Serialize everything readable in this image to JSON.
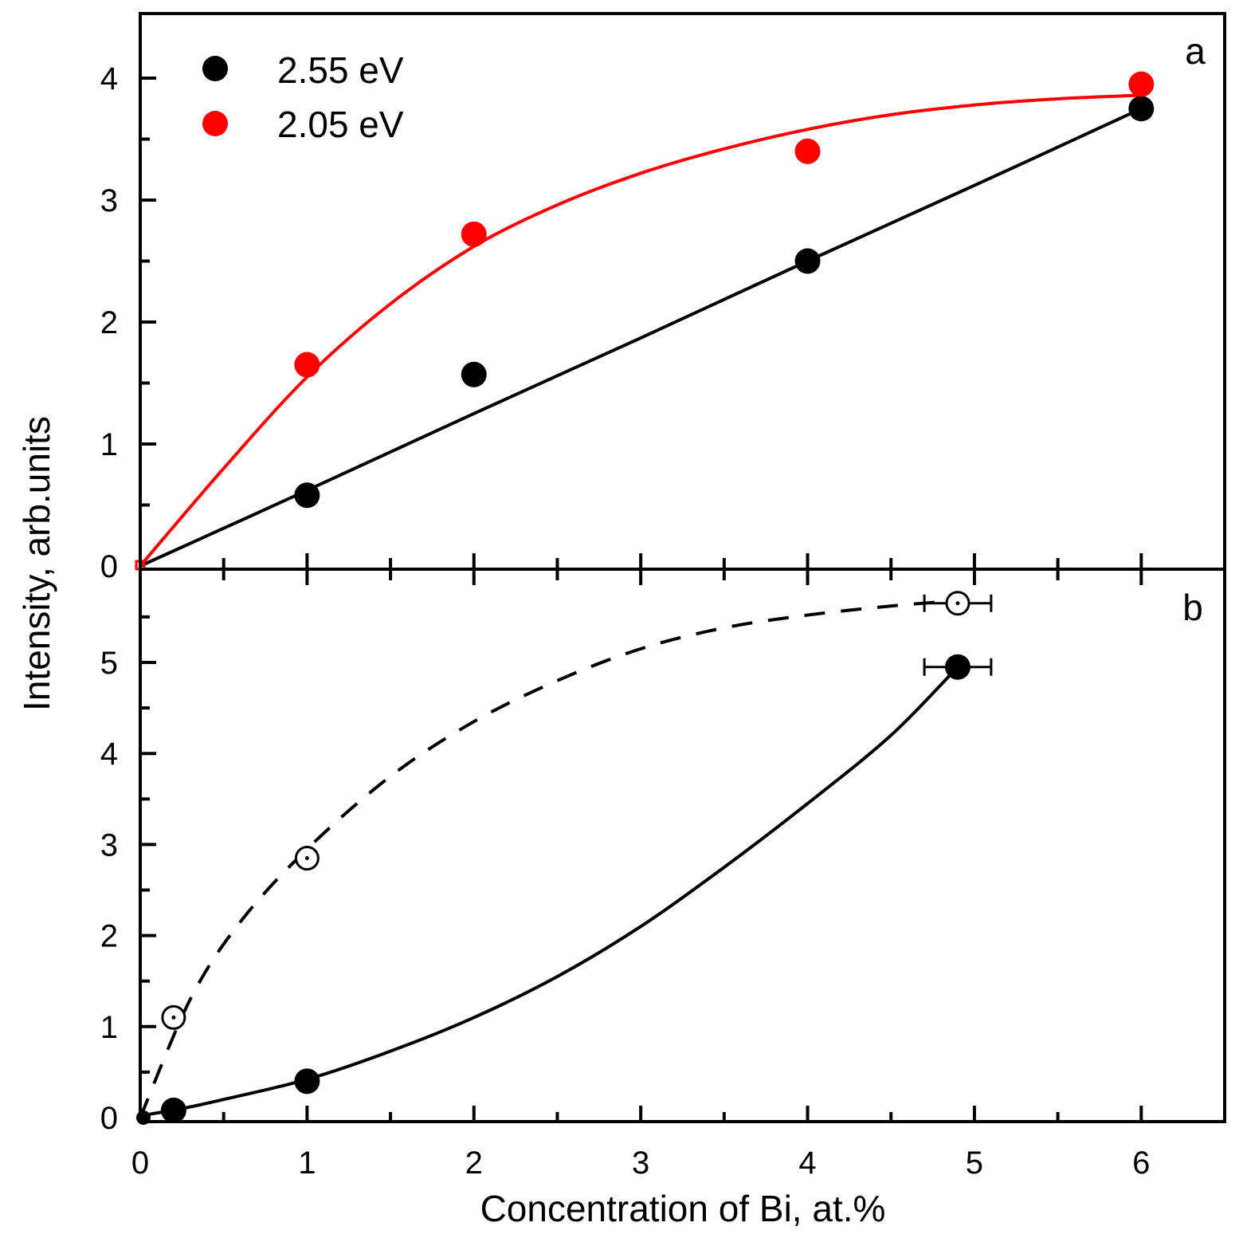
{
  "chart_data": [
    {
      "panel": "a",
      "type": "line",
      "panel_label": "a",
      "xlabel": "Concentration of Bi, at.%",
      "ylabel": "Intensity, arb.units",
      "xlim": [
        0,
        6.5
      ],
      "ylim": [
        0,
        4.5
      ],
      "xticks": [
        0,
        1,
        2,
        3,
        4,
        5,
        6
      ],
      "yticks": [
        0,
        1,
        2,
        3,
        4
      ],
      "y_tick_labels": [
        "0",
        "1",
        "2",
        "3",
        "4"
      ],
      "grid": false,
      "legend_position": "top-left",
      "series": [
        {
          "name": "2.55 eV",
          "color": "#000000",
          "marker": "filled-circle",
          "x": [
            0,
            1,
            2,
            4,
            6
          ],
          "y": [
            0,
            0.58,
            1.57,
            2.5,
            3.75
          ],
          "fit": {
            "x": [
              0,
              1,
              2,
              3,
              4,
              5,
              6
            ],
            "y": [
              0,
              0.62,
              1.25,
              1.87,
              2.5,
              3.12,
              3.75
            ]
          }
        },
        {
          "name": "2.05 eV",
          "color": "#ff0000",
          "marker": "filled-circle",
          "x": [
            0,
            1,
            2,
            4,
            6
          ],
          "y": [
            0,
            1.65,
            2.72,
            3.4,
            3.95
          ],
          "fit": {
            "x": [
              0,
              0.5,
              1,
              1.5,
              2,
              2.5,
              3,
              3.5,
              4,
              4.5,
              5,
              5.5,
              6
            ],
            "y": [
              0,
              0.8,
              1.55,
              2.15,
              2.62,
              2.96,
              3.22,
              3.42,
              3.58,
              3.7,
              3.78,
              3.83,
              3.86
            ]
          }
        }
      ]
    },
    {
      "panel": "b",
      "type": "line",
      "panel_label": "b",
      "xlabel": "Concentration of Bi, at.%",
      "ylabel": "Intensity, arb.units",
      "xlim": [
        0,
        6.5
      ],
      "ylim": [
        0,
        6
      ],
      "xticks": [
        0,
        1,
        2,
        3,
        4,
        5,
        6
      ],
      "x_tick_labels": [
        "0",
        "1",
        "2",
        "3",
        "4",
        "5",
        "6"
      ],
      "yticks": [
        0,
        1,
        2,
        3,
        4,
        5
      ],
      "y_tick_labels": [
        "0",
        "1",
        "2",
        "3",
        "4",
        "5"
      ],
      "grid": false,
      "series": [
        {
          "name": "open circles",
          "color": "#000000",
          "marker": "open-circle",
          "linestyle": "dashed",
          "x": [
            0.2,
            1.0,
            4.9
          ],
          "y": [
            1.1,
            2.85,
            5.65
          ],
          "xerr": [
            0,
            0,
            0.2
          ],
          "fit": {
            "x": [
              0,
              0.3,
              0.6,
              1,
              1.5,
              2,
              2.5,
              3,
              3.5,
              4,
              4.5,
              4.9
            ],
            "y": [
              0,
              1.3,
              2.15,
              2.95,
              3.75,
              4.35,
              4.8,
              5.15,
              5.38,
              5.52,
              5.62,
              5.68
            ]
          }
        },
        {
          "name": "filled circles",
          "color": "#000000",
          "marker": "filled-circle",
          "linestyle": "solid",
          "x": [
            0,
            0.2,
            1.0,
            4.9
          ],
          "y": [
            0,
            0.08,
            0.4,
            4.95
          ],
          "xerr": [
            0,
            0,
            0,
            0.2
          ],
          "fit": {
            "x": [
              0,
              0.25,
              0.5,
              1,
              1.5,
              2,
              2.5,
              3,
              3.5,
              4,
              4.5,
              4.9
            ],
            "y": [
              0.02,
              0.1,
              0.2,
              0.42,
              0.73,
              1.1,
              1.55,
              2.1,
              2.75,
              3.45,
              4.2,
              4.95
            ]
          }
        }
      ]
    }
  ]
}
